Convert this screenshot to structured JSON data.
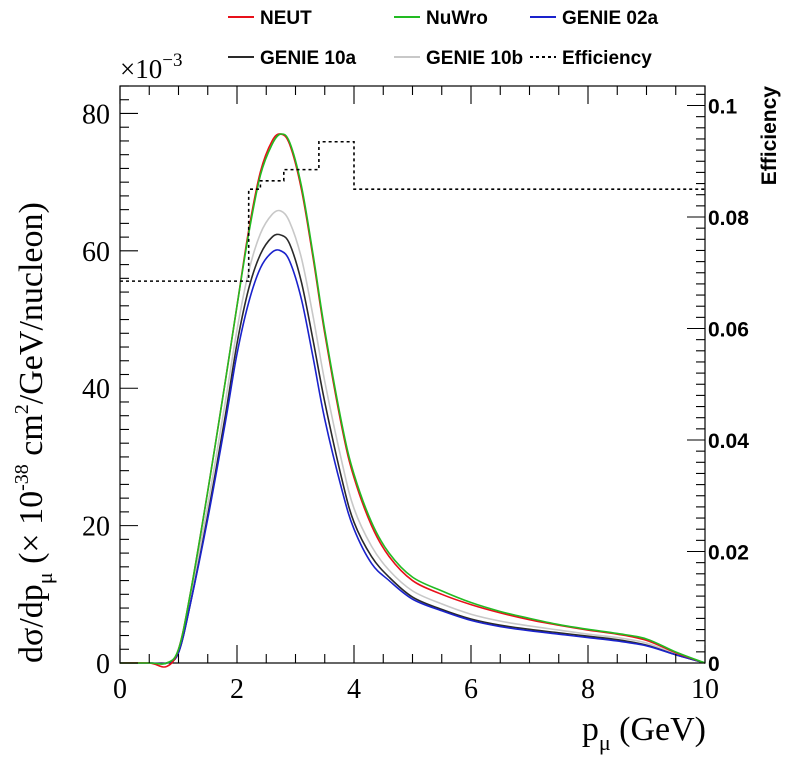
{
  "chart_data": {
    "type": "line",
    "xlabel": "p",
    "xlabel_sub": "μ",
    "xlabel_unit": " (GeV)",
    "ylabel": {
      "a": "dσ/dp",
      "a_sub": "μ",
      "b": " (× 10",
      "b_sup": "-38",
      "c": " cm",
      "c_sup": "2",
      "d": "/GeV/nucleon)"
    },
    "exponent": {
      "base": "×10",
      "power": "−3"
    },
    "y2label": "Efficiency",
    "xlim": [
      0,
      10
    ],
    "ylim": [
      0,
      84
    ],
    "y2lim": [
      0,
      0.1035
    ],
    "x_ticks": [
      "0",
      "2",
      "4",
      "6",
      "8",
      "10"
    ],
    "y_ticks": [
      "0",
      "20",
      "40",
      "60",
      "80"
    ],
    "y2_ticks": [
      "0",
      "0.02",
      "0.04",
      "0.06",
      "0.08",
      "0.1"
    ],
    "legend": {
      "position": "top",
      "entries": [
        {
          "name": "NEUT",
          "color": "#e8101a",
          "style": "solid"
        },
        {
          "name": "NuWro",
          "color": "#22bb22",
          "style": "solid"
        },
        {
          "name": "GENIE 02a",
          "color": "#1a22cc",
          "style": "solid"
        },
        {
          "name": "GENIE 10a",
          "color": "#2a2a2a",
          "style": "solid"
        },
        {
          "name": "GENIE 10b",
          "color": "#c8c8c8",
          "style": "solid"
        },
        {
          "name": "Efficiency",
          "color": "#000000",
          "style": "dotted"
        }
      ]
    },
    "x": [
      0,
      0.5,
      0.8,
      1.0,
      1.2,
      1.5,
      1.8,
      2.0,
      2.2,
      2.4,
      2.6,
      2.75,
      2.9,
      3.1,
      3.3,
      3.5,
      3.8,
      4.0,
      4.3,
      4.6,
      5.0,
      5.5,
      6.0,
      6.5,
      7.0,
      7.5,
      8.0,
      8.5,
      9.0,
      9.5,
      10.0
    ],
    "series": [
      {
        "name": "NEUT",
        "color": "#e8101a",
        "width": 1.6,
        "values": [
          0,
          0,
          -0.5,
          2,
          10,
          25,
          41,
          52,
          63,
          71.5,
          76,
          77,
          75.5,
          69,
          59,
          48,
          34,
          27,
          20,
          15.5,
          12,
          10,
          8.5,
          7.3,
          6.3,
          5.5,
          4.8,
          4.2,
          3.3,
          1.5,
          0
        ]
      },
      {
        "name": "NuWro",
        "color": "#22bb22",
        "width": 1.6,
        "values": [
          0,
          0,
          0,
          2,
          10,
          25,
          41,
          52,
          62.5,
          71,
          75.5,
          77,
          75.8,
          69.5,
          59.5,
          48.5,
          34.5,
          27.5,
          20.5,
          16,
          12.5,
          10.5,
          8.8,
          7.5,
          6.5,
          5.6,
          4.9,
          4.3,
          3.5,
          1.6,
          0
        ]
      },
      {
        "name": "GENIE 02a",
        "color": "#1a22cc",
        "width": 1.6,
        "values": [
          0,
          0,
          0,
          1.5,
          8.5,
          21,
          35,
          45,
          52.5,
          57.5,
          59.8,
          60,
          58.5,
          53,
          44.5,
          35.5,
          25,
          19.5,
          14.5,
          12,
          9.3,
          7.6,
          6.2,
          5.3,
          4.7,
          4.2,
          3.7,
          3.2,
          2.5,
          1.2,
          0
        ]
      },
      {
        "name": "GENIE 10a",
        "color": "#2a2a2a",
        "width": 1.6,
        "values": [
          0,
          0,
          0,
          1.5,
          8.5,
          21.5,
          36,
          46.5,
          54.5,
          59.5,
          62,
          62.3,
          61,
          55.5,
          47,
          38,
          26.5,
          20.5,
          15.5,
          12.5,
          9.6,
          7.8,
          6.4,
          5.5,
          4.9,
          4.4,
          3.9,
          3.4,
          2.6,
          1.2,
          0
        ]
      },
      {
        "name": "GENIE 10b",
        "color": "#c8c8c8",
        "width": 1.6,
        "values": [
          0,
          0,
          0,
          1.8,
          9.5,
          23,
          38,
          48.5,
          57,
          62.5,
          65.3,
          65.8,
          64.2,
          59,
          50.5,
          41,
          29,
          22.5,
          17,
          13.5,
          10.5,
          8.6,
          7.1,
          6.1,
          5.4,
          4.8,
          4.2,
          3.7,
          2.9,
          1.3,
          0
        ]
      }
    ],
    "efficiency": {
      "name": "Efficiency",
      "edges": [
        0,
        2.2,
        2.4,
        2.8,
        3.4,
        4.0,
        10.0
      ],
      "values": [
        0.0685,
        0.085,
        0.0865,
        0.0885,
        0.0935,
        0.085
      ]
    }
  }
}
